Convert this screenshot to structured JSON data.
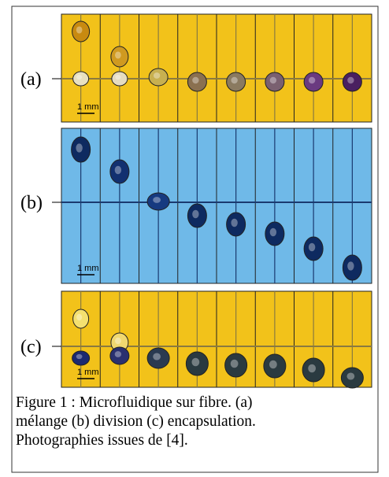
{
  "panels": [
    {
      "label": "(a)",
      "scale": "1 mm"
    },
    {
      "label": "(b)",
      "scale": "1 mm"
    },
    {
      "label": "(c)",
      "scale": "1 mm"
    }
  ],
  "caption": {
    "lines": [
      "Figure 1 : Microfluidique sur fibre. (a)",
      "mélange (b) division (c) encapsulation.",
      "Photographies issues de [4]."
    ]
  }
}
